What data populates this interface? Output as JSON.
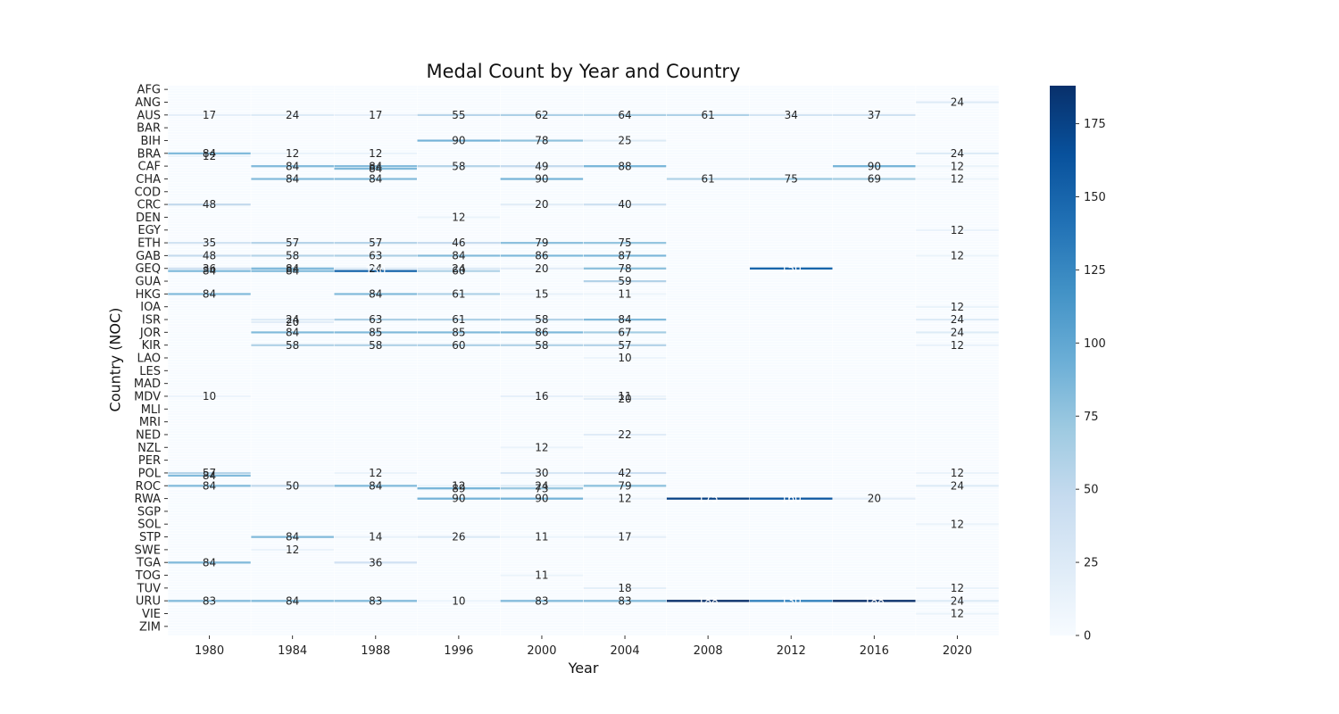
{
  "chart_data": {
    "type": "heatmap",
    "title": "Medal Count by Year and Country",
    "xlabel": "Year",
    "ylabel": "Country (NOC)",
    "x_categories": [
      "1980",
      "1984",
      "1988",
      "1996",
      "2000",
      "2004",
      "2008",
      "2012",
      "2016",
      "2020"
    ],
    "y_tick_labels": [
      "AFG",
      "ANG",
      "AUS",
      "BAR",
      "BIH",
      "BRA",
      "CAF",
      "CHA",
      "COD",
      "CRC",
      "DEN",
      "EGY",
      "ETH",
      "GAB",
      "GEQ",
      "GUA",
      "HKG",
      "IOA",
      "ISR",
      "JOR",
      "KIR",
      "LAO",
      "LES",
      "MAD",
      "MDV",
      "MLI",
      "MRI",
      "NED",
      "NZL",
      "PER",
      "POL",
      "ROC",
      "RWA",
      "SGP",
      "SOL",
      "STP",
      "SWE",
      "TGA",
      "TOG",
      "TUV",
      "URU",
      "VIE",
      "ZIM"
    ],
    "colormap": "Blues",
    "color_min": 0,
    "color_max": 188,
    "colorbar_ticks": [
      0,
      25,
      50,
      75,
      100,
      125,
      150,
      175
    ],
    "row_count_per_label": 5,
    "highlight_cells": [
      {
        "year": "1980",
        "row": "AUS",
        "value": 17
      },
      {
        "year": "1984",
        "row": "AUS",
        "value": 24
      },
      {
        "year": "1988",
        "row": "AUS",
        "value": 17
      },
      {
        "year": "1996",
        "row": "AUS",
        "value": 55
      },
      {
        "year": "2000",
        "row": "AUS",
        "value": 62
      },
      {
        "year": "2004",
        "row": "AUS",
        "value": 64
      },
      {
        "year": "2008",
        "row": "AUS",
        "value": 61
      },
      {
        "year": "2012",
        "row": "AUS",
        "value": 34
      },
      {
        "year": "2016",
        "row": "AUS",
        "value": 37
      },
      {
        "year": "2020",
        "row": "ANG",
        "value": 24
      },
      {
        "year": "1996",
        "row": "BIH",
        "value": 90
      },
      {
        "year": "2000",
        "row": "BIH",
        "value": 78
      },
      {
        "year": "2004",
        "row": "BIH",
        "value": 25
      },
      {
        "year": "1980",
        "row": "BRA",
        "value": 84
      },
      {
        "year": "1980",
        "row": "BRA",
        "value": 12
      },
      {
        "year": "1984",
        "row": "BRA",
        "value": 12
      },
      {
        "year": "1988",
        "row": "BRA",
        "value": 12
      },
      {
        "year": "2020",
        "row": "BRA",
        "value": 24
      },
      {
        "year": "1984",
        "row": "CAF",
        "value": 84
      },
      {
        "year": "1988",
        "row": "CAF",
        "value": 84
      },
      {
        "year": "1988",
        "row": "CAF",
        "value": 84
      },
      {
        "year": "1996",
        "row": "CAF",
        "value": 58
      },
      {
        "year": "2000",
        "row": "CAF",
        "value": 49
      },
      {
        "year": "2004",
        "row": "CAF",
        "value": 88
      },
      {
        "year": "2016",
        "row": "CAF",
        "value": 90
      },
      {
        "year": "2020",
        "row": "CAF",
        "value": 12
      },
      {
        "year": "1984",
        "row": "CHA",
        "value": 84
      },
      {
        "year": "1988",
        "row": "CHA",
        "value": 84
      },
      {
        "year": "2000",
        "row": "CHA",
        "value": 90
      },
      {
        "year": "2008",
        "row": "CHA",
        "value": 61
      },
      {
        "year": "2012",
        "row": "CHA",
        "value": 75
      },
      {
        "year": "2016",
        "row": "CHA",
        "value": 69
      },
      {
        "year": "2020",
        "row": "CHA",
        "value": 12
      },
      {
        "year": "1980",
        "row": "CRC",
        "value": 48
      },
      {
        "year": "1996",
        "row": "DEN",
        "value": 12
      },
      {
        "year": "2000",
        "row": "CRC",
        "value": 20
      },
      {
        "year": "2004",
        "row": "CRC",
        "value": 40
      },
      {
        "year": "2020",
        "row": "EGY",
        "value": 12
      },
      {
        "year": "1980",
        "row": "ETH",
        "value": 35
      },
      {
        "year": "1984",
        "row": "ETH",
        "value": 57
      },
      {
        "year": "1988",
        "row": "ETH",
        "value": 57
      },
      {
        "year": "1996",
        "row": "ETH",
        "value": 46
      },
      {
        "year": "2000",
        "row": "ETH",
        "value": 79
      },
      {
        "year": "2004",
        "row": "ETH",
        "value": 75
      },
      {
        "year": "1980",
        "row": "GAB",
        "value": 48
      },
      {
        "year": "1984",
        "row": "GAB",
        "value": 58
      },
      {
        "year": "1988",
        "row": "GAB",
        "value": 63
      },
      {
        "year": "1996",
        "row": "GAB",
        "value": 84
      },
      {
        "year": "2000",
        "row": "GAB",
        "value": 86
      },
      {
        "year": "2004",
        "row": "GAB",
        "value": 87
      },
      {
        "year": "2020",
        "row": "GAB",
        "value": 12
      },
      {
        "year": "1980",
        "row": "GEQ",
        "value": 36
      },
      {
        "year": "1984",
        "row": "GEQ",
        "value": 84
      },
      {
        "year": "1988",
        "row": "GEQ",
        "value": 24
      },
      {
        "year": "1996",
        "row": "GEQ",
        "value": 24
      },
      {
        "year": "2012",
        "row": "GEQ",
        "value": 150
      },
      {
        "year": "1980",
        "row": "GEQ",
        "value": 84
      },
      {
        "year": "1984",
        "row": "GEQ",
        "value": 84
      },
      {
        "year": "1988",
        "row": "GEQ",
        "value": 150
      },
      {
        "year": "1996",
        "row": "GEQ",
        "value": 60
      },
      {
        "year": "2000",
        "row": "GEQ",
        "value": 20
      },
      {
        "year": "2004",
        "row": "GEQ",
        "value": 78
      },
      {
        "year": "2004",
        "row": "GUA",
        "value": 59
      },
      {
        "year": "1980",
        "row": "HKG",
        "value": 84
      },
      {
        "year": "1988",
        "row": "HKG",
        "value": 84
      },
      {
        "year": "1996",
        "row": "HKG",
        "value": 61
      },
      {
        "year": "2000",
        "row": "HKG",
        "value": 15
      },
      {
        "year": "2004",
        "row": "HKG",
        "value": 11
      },
      {
        "year": "2020",
        "row": "IOA",
        "value": 12
      },
      {
        "year": "1984",
        "row": "ISR",
        "value": 24
      },
      {
        "year": "1984",
        "row": "ISR",
        "value": 20
      },
      {
        "year": "1988",
        "row": "ISR",
        "value": 63
      },
      {
        "year": "1996",
        "row": "ISR",
        "value": 61
      },
      {
        "year": "2000",
        "row": "ISR",
        "value": 58
      },
      {
        "year": "2004",
        "row": "ISR",
        "value": 84
      },
      {
        "year": "2020",
        "row": "ISR",
        "value": 24
      },
      {
        "year": "1984",
        "row": "JOR",
        "value": 84
      },
      {
        "year": "1988",
        "row": "JOR",
        "value": 85
      },
      {
        "year": "1996",
        "row": "JOR",
        "value": 85
      },
      {
        "year": "2000",
        "row": "JOR",
        "value": 86
      },
      {
        "year": "2004",
        "row": "JOR",
        "value": 67
      },
      {
        "year": "2020",
        "row": "JOR",
        "value": 24
      },
      {
        "year": "1984",
        "row": "KIR",
        "value": 58
      },
      {
        "year": "1988",
        "row": "KIR",
        "value": 58
      },
      {
        "year": "1996",
        "row": "KIR",
        "value": 60
      },
      {
        "year": "2000",
        "row": "KIR",
        "value": 58
      },
      {
        "year": "2004",
        "row": "KIR",
        "value": 57
      },
      {
        "year": "2020",
        "row": "KIR",
        "value": 12
      },
      {
        "year": "2004",
        "row": "LAO",
        "value": 10
      },
      {
        "year": "2004",
        "row": "MDV",
        "value": 11
      },
      {
        "year": "1980",
        "row": "MDV",
        "value": 10
      },
      {
        "year": "2000",
        "row": "MDV",
        "value": 16
      },
      {
        "year": "2004",
        "row": "MDV",
        "value": 20
      },
      {
        "year": "2004",
        "row": "NED",
        "value": 22
      },
      {
        "year": "2000",
        "row": "NZL",
        "value": 12
      },
      {
        "year": "1980",
        "row": "POL",
        "value": 57
      },
      {
        "year": "1980",
        "row": "POL",
        "value": 84
      },
      {
        "year": "1988",
        "row": "POL",
        "value": 12
      },
      {
        "year": "2000",
        "row": "POL",
        "value": 30
      },
      {
        "year": "2004",
        "row": "POL",
        "value": 42
      },
      {
        "year": "2020",
        "row": "POL",
        "value": 12
      },
      {
        "year": "1996",
        "row": "ROC",
        "value": 12
      },
      {
        "year": "2000",
        "row": "ROC",
        "value": 24
      },
      {
        "year": "1980",
        "row": "ROC",
        "value": 84
      },
      {
        "year": "1984",
        "row": "ROC",
        "value": 50
      },
      {
        "year": "1988",
        "row": "ROC",
        "value": 84
      },
      {
        "year": "1996",
        "row": "ROC",
        "value": 89
      },
      {
        "year": "2000",
        "row": "ROC",
        "value": 73
      },
      {
        "year": "2004",
        "row": "ROC",
        "value": 79
      },
      {
        "year": "2020",
        "row": "ROC",
        "value": 24
      },
      {
        "year": "1996",
        "row": "RWA",
        "value": 90
      },
      {
        "year": "2000",
        "row": "RWA",
        "value": 90
      },
      {
        "year": "2004",
        "row": "RWA",
        "value": 12
      },
      {
        "year": "2008",
        "row": "RWA",
        "value": 175
      },
      {
        "year": "2012",
        "row": "RWA",
        "value": 160
      },
      {
        "year": "2016",
        "row": "RWA",
        "value": 20
      },
      {
        "year": "2020",
        "row": "SOL",
        "value": 12
      },
      {
        "year": "1984",
        "row": "STP",
        "value": 84
      },
      {
        "year": "1988",
        "row": "STP",
        "value": 14
      },
      {
        "year": "1996",
        "row": "STP",
        "value": 26
      },
      {
        "year": "2000",
        "row": "STP",
        "value": 11
      },
      {
        "year": "2004",
        "row": "STP",
        "value": 17
      },
      {
        "year": "1984",
        "row": "SWE",
        "value": 12
      },
      {
        "year": "1980",
        "row": "TGA",
        "value": 84
      },
      {
        "year": "1988",
        "row": "TGA",
        "value": 36
      },
      {
        "year": "2000",
        "row": "TOG",
        "value": 11
      },
      {
        "year": "2004",
        "row": "TUV",
        "value": 18
      },
      {
        "year": "2020",
        "row": "TUV",
        "value": 12
      },
      {
        "year": "1980",
        "row": "URU",
        "value": 83
      },
      {
        "year": "1984",
        "row": "URU",
        "value": 84
      },
      {
        "year": "1988",
        "row": "URU",
        "value": 83
      },
      {
        "year": "1996",
        "row": "URU",
        "value": 10
      },
      {
        "year": "2000",
        "row": "URU",
        "value": 83
      },
      {
        "year": "2004",
        "row": "URU",
        "value": 83
      },
      {
        "year": "2008",
        "row": "URU",
        "value": 188
      },
      {
        "year": "2012",
        "row": "URU",
        "value": 130
      },
      {
        "year": "2016",
        "row": "URU",
        "value": 188
      },
      {
        "year": "2020",
        "row": "URU",
        "value": 24
      },
      {
        "year": "2020",
        "row": "VIE",
        "value": 12
      }
    ]
  }
}
